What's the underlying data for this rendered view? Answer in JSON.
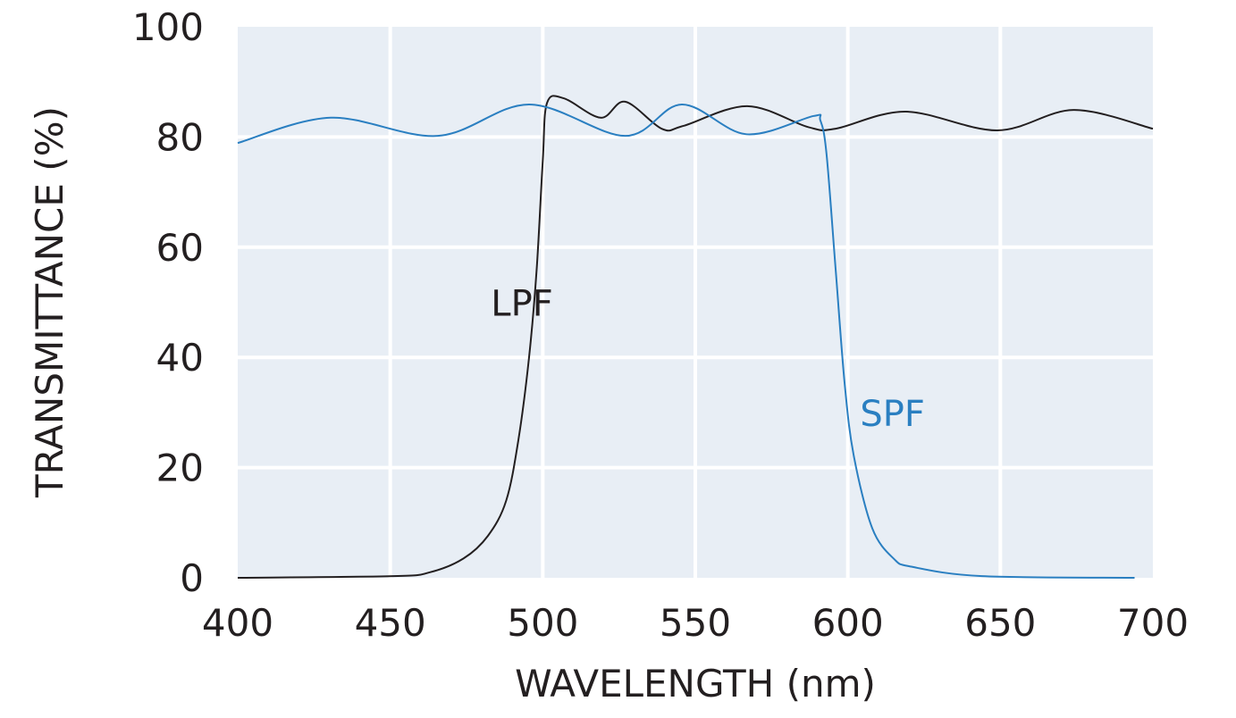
{
  "chart_data": {
    "type": "line",
    "title": "",
    "xlabel": "WAVELENGTH (nm)",
    "ylabel": "TRANSMITTANCE (%)",
    "xlim": [
      400,
      700
    ],
    "ylim": [
      0,
      100
    ],
    "xticks": [
      400,
      450,
      500,
      550,
      600,
      650,
      700
    ],
    "yticks": [
      0,
      20,
      40,
      60,
      80,
      100
    ],
    "grid": true,
    "background": "#e8eef5",
    "series": [
      {
        "name": "LPF",
        "color": "#231f20",
        "label_at": [
          483,
          50
        ],
        "points": [
          [
            400,
            0
          ],
          [
            451,
            0.3
          ],
          [
            463,
            1
          ],
          [
            474,
            3.5
          ],
          [
            482,
            7.6
          ],
          [
            488,
            14
          ],
          [
            492,
            25
          ],
          [
            495.5,
            40
          ],
          [
            498,
            56
          ],
          [
            500,
            75.7
          ],
          [
            501.4,
            86.2
          ],
          [
            507,
            87
          ],
          [
            519,
            83.5
          ],
          [
            527,
            86.4
          ],
          [
            539,
            81.5
          ],
          [
            546,
            82
          ],
          [
            567,
            85.6
          ],
          [
            587,
            81.8
          ],
          [
            596,
            81.5
          ],
          [
            619,
            84.6
          ],
          [
            649,
            81.2
          ],
          [
            674,
            84.9
          ],
          [
            700,
            81.5
          ]
        ]
      },
      {
        "name": "SPF",
        "color": "#2a7fc1",
        "label_at": [
          604,
          30
        ],
        "points": [
          [
            400,
            78.9
          ],
          [
            430.5,
            83.5
          ],
          [
            465.6,
            80.2
          ],
          [
            495.5,
            85.9
          ],
          [
            527,
            80.2
          ],
          [
            545.6,
            85.9
          ],
          [
            566.7,
            80.5
          ],
          [
            588.7,
            83.8
          ],
          [
            591,
            83
          ],
          [
            593,
            77
          ],
          [
            596,
            56
          ],
          [
            599,
            35
          ],
          [
            602,
            22
          ],
          [
            608,
            9
          ],
          [
            615,
            3.5
          ],
          [
            621,
            2
          ],
          [
            644,
            0.3
          ],
          [
            694,
            0
          ]
        ]
      }
    ]
  }
}
